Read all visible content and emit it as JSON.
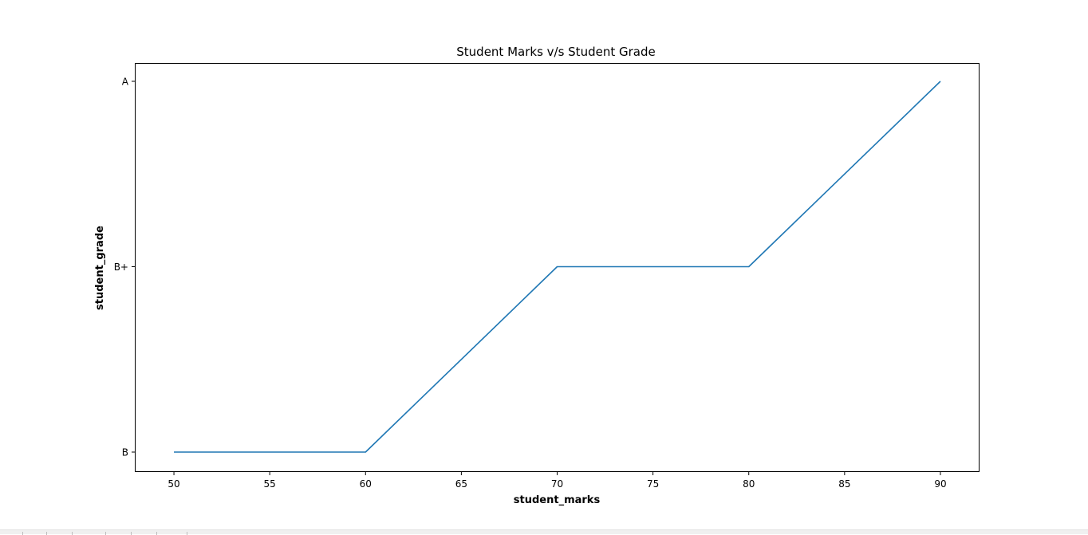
{
  "chart_data": {
    "type": "line",
    "title": "Student Marks v/s Student Grade",
    "xlabel": "student_marks",
    "ylabel": "student_grade",
    "x": [
      50,
      60,
      70,
      80,
      90
    ],
    "y": [
      "B",
      "B",
      "B+",
      "B+",
      "A"
    ],
    "y_categories": [
      "B",
      "B+",
      "A"
    ],
    "x_ticks": [
      50,
      55,
      60,
      65,
      70,
      75,
      80,
      85,
      90
    ],
    "xlim": [
      48,
      92
    ],
    "grid": false,
    "line_color": "#1f77b4"
  }
}
